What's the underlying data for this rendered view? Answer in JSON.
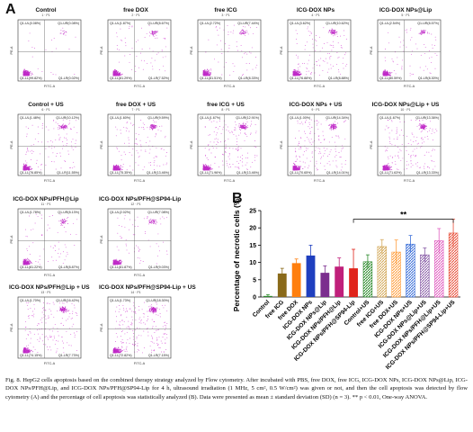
{
  "panel_a_letter": "A",
  "panel_b_letter": "B",
  "axis_text": {
    "x": "FITC-A",
    "y": "PE-A"
  },
  "flow_plots": [
    {
      "title": "Control",
      "sub": "1 · P1",
      "ul": "Q1-UL(0.08%)",
      "ur": "Q1-UR(0.08%)",
      "ll": "Q1-LL(99.82%)",
      "lr": "Q1-LR(0.02%)",
      "spread": 0
    },
    {
      "title": "free DOX",
      "sub": "2 · P1",
      "ul": "Q1-UL(1.87%)",
      "ur": "Q1-UR(8.67%)",
      "ll": "Q1-LL(81.29%)",
      "lr": "Q1-LR(7.52%)",
      "spread": 1
    },
    {
      "title": "free ICG",
      "sub": "3 · P1",
      "ul": "Q1-UL(2.72%)",
      "ur": "Q1-UR(7.44%)",
      "ll": "Q1-LL(81.51%)",
      "lr": "Q1-LR(8.33%)",
      "spread": 1
    },
    {
      "title": "ICG-DOX NPs",
      "sub": "4 · P1",
      "ul": "Q1-UL(3.62%)",
      "ur": "Q1-UR(10.62%)",
      "ll": "Q1-LL(76.88%)",
      "lr": "Q1-LR(8.88%)",
      "spread": 2
    },
    {
      "title": "ICG-DOX NPs@Lip",
      "sub": "5 · P1",
      "ul": "Q1-UL(2.54%)",
      "ur": "Q1-UR(8.57%)",
      "ll": "Q1-LL(80.59%)",
      "lr": "Q1-LR(8.30%)",
      "spread": 1
    },
    {
      "title": "Control + US",
      "sub": "6 · P1",
      "ul": "Q1-UL(1.48%)",
      "ur": "Q1-UR(10.12%)",
      "ll": "Q1-LL(76.85%)",
      "lr": "Q1-LR(11.55%)",
      "spread": 2
    },
    {
      "title": "free DOX + US",
      "sub": "7 · P1",
      "ul": "Q1-UL(1.60%)",
      "ur": "Q1-UR(9.59%)",
      "ll": "Q1-LL(75.35%)",
      "lr": "Q1-LR(13.46%)",
      "spread": 2
    },
    {
      "title": "free ICG + US",
      "sub": "8 · P1",
      "ul": "Q1-UL(1.67%)",
      "ur": "Q1-UR(12.91%)",
      "ll": "Q1-LL(71.96%)",
      "lr": "Q1-LR(13.46%)",
      "spread": 3
    },
    {
      "title": "ICG-DOX NPs + US",
      "sub": "9 · P1",
      "ul": "Q1-UL(1.00%)",
      "ur": "Q1-UR(14.34%)",
      "ll": "Q1-LL(70.65%)",
      "lr": "Q1-LR(14.01%)",
      "spread": 3
    },
    {
      "title": "ICG-DOX NPs@Lip + US",
      "sub": "10 · P1",
      "ul": "Q1-UL(1.67%)",
      "ur": "Q1-UR(13.36%)",
      "ll": "Q1-LL(71.63%)",
      "lr": "Q1-LR(13.33%)",
      "spread": 3
    },
    {
      "title": "ICG-DOX NPs/PFH@Lip",
      "sub": "11 · P1",
      "ul": "Q1-UL(1.78%)",
      "ur": "Q1-UR(8.13%)",
      "ll": "Q1-LL(81.22%)",
      "lr": "Q1-LR(8.87%)",
      "spread": 1
    },
    {
      "title": "ICG-DOX NPs/PFH@SP94-Lip",
      "sub": "12 · P1",
      "ul": "Q1-UL(2.02%)",
      "ur": "Q1-UR(7.08%)",
      "ll": "Q1-LL(81.87%)",
      "lr": "Q1-LR(9.03%)",
      "spread": 1
    },
    {
      "title": "ICG-DOX NPs/PFH@Lip + US",
      "sub": "13 · P1",
      "ul": "Q1-UL(1.70%)",
      "ur": "Q1-UR(16.42%)",
      "ll": "Q1-LL(74.15%)",
      "lr": "Q1-LR(7.73%)",
      "spread": 3
    },
    {
      "title": "ICG-DOX NPs/PFH@SP94-Lip + US",
      "sub": "14 · P1",
      "ul": "Q1-UL(1.73%)",
      "ur": "Q1-UR(18.30%)",
      "ll": "Q1-LL(72.82%)",
      "lr": "Q1-LR(7.15%)",
      "spread": 4
    }
  ],
  "chart_data": {
    "type": "bar",
    "title": "",
    "xlabel": "",
    "ylabel": "Percentage of necrotic cells (%)",
    "ylim": [
      0,
      25
    ],
    "yticks": [
      0,
      5,
      10,
      15,
      20,
      25
    ],
    "grid": false,
    "significance_label": "**",
    "significance_between": [
      "ICG-DOX NPs/PFH@SP94-Lip",
      "ICG-DOX NPs/PFH@SP94-Lip+US"
    ],
    "categories": [
      "Control",
      "free ICG",
      "free DOX",
      "ICG-DOX NPs",
      "ICG-DOX NPs@Lip",
      "ICG-DOX NPs/PFH@Lip",
      "ICG-DOX NPs/PFH@SP94-Lip",
      "Control+US",
      "free ICG+US",
      "free DOX+US",
      "ICG-DOX NPs+US",
      "ICG-DOX NPs@Lip+US",
      "ICG-DOX NPs/PFH@Lip+US",
      "ICG-DOX NPs/PFH@SP94-Lip+US"
    ],
    "values": [
      0.3,
      6.8,
      9.8,
      12.0,
      7.0,
      8.8,
      8.3,
      10.2,
      14.6,
      13.0,
      15.3,
      12.2,
      16.3,
      18.5
    ],
    "errors": [
      0.4,
      1.5,
      1.2,
      3.0,
      2.0,
      2.5,
      5.5,
      2.0,
      2.0,
      3.5,
      2.5,
      2.0,
      3.5,
      4.0
    ],
    "colors": [
      "#2e8b2e",
      "#8a6a1a",
      "#ff7f0e",
      "#1f3fbf",
      "#7b2d8e",
      "#c0207a",
      "#e0241b",
      "#2e8b2e",
      "#d4a95a",
      "#ff9f40",
      "#3a6fd8",
      "#8a5fa8",
      "#e05fc0",
      "#e8503a"
    ],
    "hatched": [
      false,
      false,
      false,
      false,
      false,
      false,
      false,
      true,
      true,
      true,
      true,
      true,
      true,
      true
    ]
  },
  "caption": "Fig. 8. HepG2 cells apoptosis based on the combined therapy strategy analyzed by Flow cytometry. After incubated with PBS, free DOX, free ICG, ICG-DOX NPs, ICG-DOX NPs@Lip, ICG-DOX NPs/PFH@Lip, and ICG-DOX NPs/PFH@SP94-Lip for 4 h, ultrasound irradiation (1 MHz, 5 cm², 0.5 W/cm²) was given or not, and then the cell apoptosis was detected by flow cytometry (A) and the percentage of cell apoptosis was statistically analyzed (B). Data were presented as mean ± standard deviation (SD) (n = 3). ** p < 0.01, One-way ANOVA."
}
